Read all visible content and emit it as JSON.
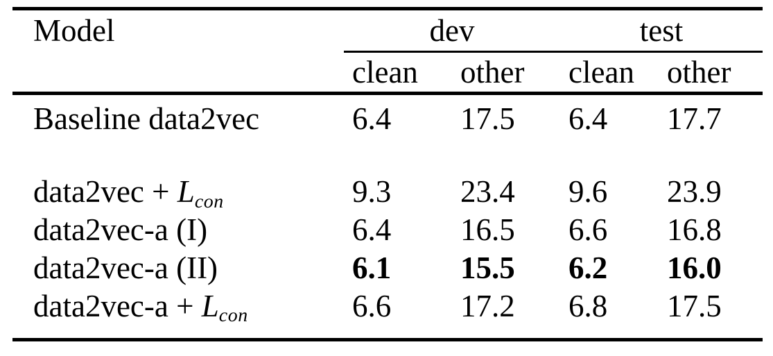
{
  "table": {
    "colors": {
      "background": "#ffffff",
      "text": "#000000",
      "rule": "#000000"
    },
    "header": {
      "model_label": "Model",
      "groups": [
        {
          "label": "dev"
        },
        {
          "label": "test"
        }
      ],
      "subcolumns": [
        "clean",
        "other",
        "clean",
        "other"
      ]
    },
    "rows": [
      {
        "model_prefix": "Baseline data2vec",
        "model_math_var": "",
        "model_math_sub": "",
        "values": [
          "6.4",
          "17.5",
          "6.4",
          "17.7"
        ],
        "bold": false
      },
      {
        "model_prefix": "data2vec + ",
        "model_math_var": "L",
        "model_math_sub": "con",
        "values": [
          "9.3",
          "23.4",
          "9.6",
          "23.9"
        ],
        "bold": false
      },
      {
        "model_prefix": "data2vec-a (I)",
        "model_math_var": "",
        "model_math_sub": "",
        "values": [
          "6.4",
          "16.5",
          "6.6",
          "16.8"
        ],
        "bold": false
      },
      {
        "model_prefix": "data2vec-a (II)",
        "model_math_var": "",
        "model_math_sub": "",
        "values": [
          "6.1",
          "15.5",
          "6.2",
          "16.0"
        ],
        "bold": true
      },
      {
        "model_prefix": "data2vec-a + ",
        "model_math_var": "L",
        "model_math_sub": "con",
        "values": [
          "6.6",
          "17.2",
          "6.8",
          "17.5"
        ],
        "bold": false
      }
    ]
  }
}
